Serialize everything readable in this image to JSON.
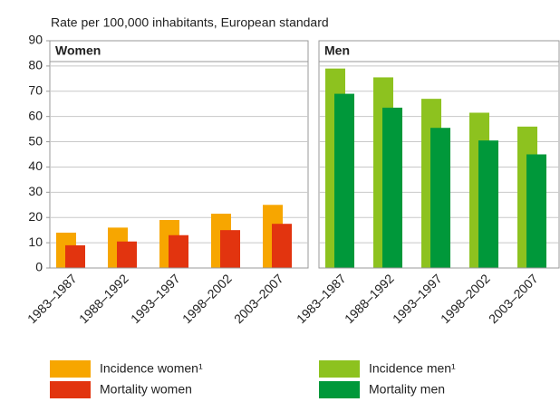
{
  "chart_data": [
    {
      "type": "bar",
      "title": "Women",
      "y_label": "Rate per 100,000 inhabitants, European standard",
      "categories": [
        "1983–1987",
        "1988–1992",
        "1993–1997",
        "1998–2002",
        "2003–2007"
      ],
      "series": [
        {
          "name": "Incidence women¹",
          "color": "#f7a600",
          "values": [
            14,
            16,
            19,
            21.5,
            25
          ]
        },
        {
          "name": "Mortality women",
          "color": "#e2340f",
          "values": [
            9,
            10.5,
            13,
            15,
            17.5
          ]
        }
      ],
      "ylim": [
        0,
        90
      ],
      "yticks": [
        0,
        10,
        20,
        30,
        40,
        50,
        60,
        70,
        80,
        90
      ],
      "grid": true
    },
    {
      "type": "bar",
      "title": "Men",
      "categories": [
        "1983–1987",
        "1988–1992",
        "1993–1997",
        "1998–2002",
        "2003–2007"
      ],
      "series": [
        {
          "name": "Incidence men¹",
          "color": "#8dc21f",
          "values": [
            79,
            75.5,
            67,
            61.5,
            56
          ]
        },
        {
          "name": "Mortality men",
          "color": "#00983a",
          "values": [
            69,
            63.5,
            55.5,
            50.5,
            45
          ]
        }
      ],
      "ylim": [
        0,
        90
      ],
      "yticks": [
        0,
        10,
        20,
        30,
        40,
        50,
        60,
        70,
        80,
        90
      ],
      "grid": true
    }
  ]
}
